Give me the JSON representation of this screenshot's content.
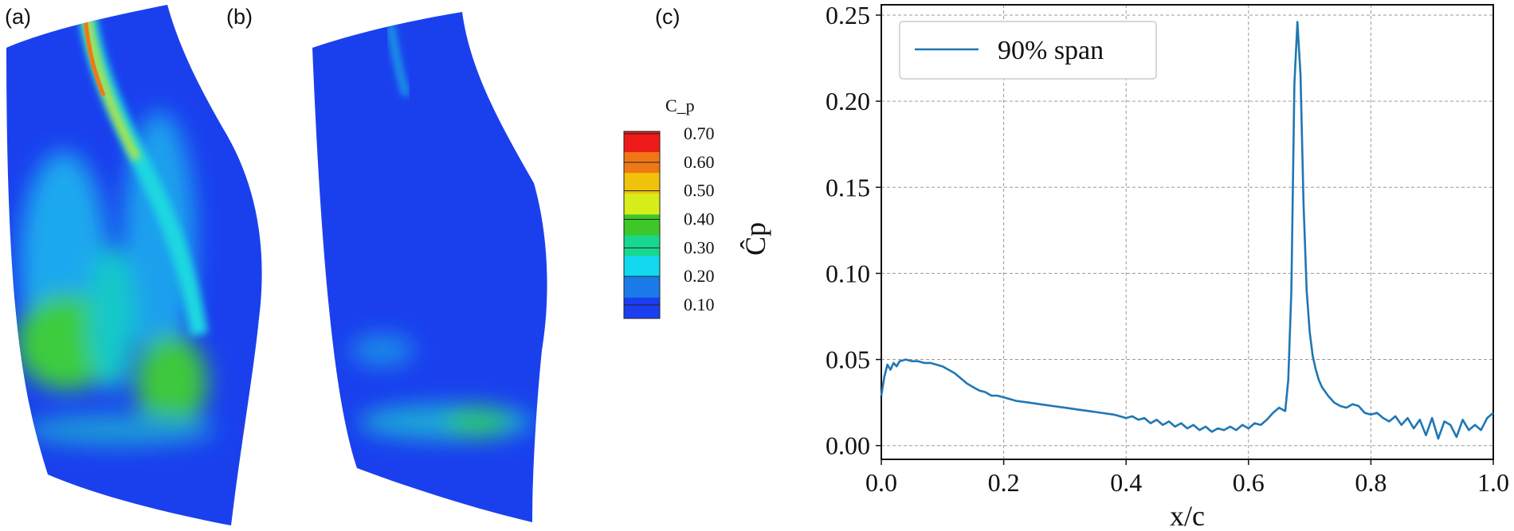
{
  "panels": {
    "a": "(a)",
    "b": "(b)",
    "c": "(c)"
  },
  "colorbar": {
    "title": "C_p",
    "labels": [
      "0.70",
      "0.60",
      "0.50",
      "0.40",
      "0.30",
      "0.20",
      "0.10"
    ],
    "colors": [
      "#ee1a1a",
      "#f07814",
      "#f0c20c",
      "#d8ee1a",
      "#3cc828",
      "#18d890",
      "#12d8f0",
      "#1a7ae8",
      "#1a3ef0"
    ]
  },
  "chart_data": {
    "type": "line",
    "xlabel": "x/c",
    "ylabel": "Ĉp",
    "xlim": [
      0.0,
      1.0
    ],
    "ylim": [
      -0.008,
      0.256
    ],
    "xticks": [
      "0.0",
      "0.2",
      "0.4",
      "0.6",
      "0.8",
      "1.0"
    ],
    "yticks": [
      "0.00",
      "0.05",
      "0.10",
      "0.15",
      "0.20",
      "0.25"
    ],
    "grid": true,
    "legend_position": "top-left",
    "series": [
      {
        "name": "90% span",
        "color": "#1f77b4",
        "x": [
          0.0,
          0.005,
          0.01,
          0.015,
          0.02,
          0.025,
          0.03,
          0.04,
          0.05,
          0.06,
          0.07,
          0.08,
          0.09,
          0.1,
          0.11,
          0.12,
          0.13,
          0.14,
          0.15,
          0.16,
          0.17,
          0.18,
          0.19,
          0.2,
          0.21,
          0.22,
          0.24,
          0.26,
          0.28,
          0.3,
          0.32,
          0.34,
          0.36,
          0.38,
          0.39,
          0.4,
          0.41,
          0.42,
          0.43,
          0.44,
          0.45,
          0.46,
          0.47,
          0.48,
          0.49,
          0.5,
          0.51,
          0.52,
          0.53,
          0.54,
          0.55,
          0.56,
          0.57,
          0.58,
          0.59,
          0.6,
          0.61,
          0.62,
          0.63,
          0.64,
          0.65,
          0.66,
          0.665,
          0.67,
          0.675,
          0.68,
          0.685,
          0.69,
          0.695,
          0.7,
          0.705,
          0.71,
          0.715,
          0.72,
          0.73,
          0.74,
          0.75,
          0.76,
          0.77,
          0.78,
          0.79,
          0.8,
          0.81,
          0.82,
          0.83,
          0.84,
          0.85,
          0.86,
          0.87,
          0.88,
          0.89,
          0.9,
          0.91,
          0.92,
          0.93,
          0.94,
          0.95,
          0.96,
          0.97,
          0.98,
          0.99,
          1.0
        ],
        "y": [
          0.029,
          0.04,
          0.047,
          0.044,
          0.048,
          0.046,
          0.049,
          0.05,
          0.049,
          0.049,
          0.048,
          0.048,
          0.047,
          0.046,
          0.044,
          0.042,
          0.039,
          0.036,
          0.034,
          0.032,
          0.031,
          0.029,
          0.029,
          0.028,
          0.027,
          0.026,
          0.025,
          0.024,
          0.023,
          0.022,
          0.021,
          0.02,
          0.019,
          0.018,
          0.017,
          0.016,
          0.017,
          0.015,
          0.016,
          0.013,
          0.015,
          0.012,
          0.014,
          0.011,
          0.013,
          0.01,
          0.012,
          0.009,
          0.011,
          0.008,
          0.01,
          0.009,
          0.011,
          0.009,
          0.012,
          0.01,
          0.013,
          0.012,
          0.015,
          0.019,
          0.022,
          0.02,
          0.038,
          0.09,
          0.21,
          0.246,
          0.215,
          0.14,
          0.09,
          0.066,
          0.052,
          0.044,
          0.038,
          0.034,
          0.029,
          0.025,
          0.023,
          0.022,
          0.024,
          0.023,
          0.019,
          0.018,
          0.019,
          0.016,
          0.014,
          0.017,
          0.012,
          0.016,
          0.01,
          0.015,
          0.006,
          0.016,
          0.004,
          0.014,
          0.012,
          0.005,
          0.015,
          0.009,
          0.012,
          0.009,
          0.016,
          0.019
        ]
      }
    ]
  }
}
